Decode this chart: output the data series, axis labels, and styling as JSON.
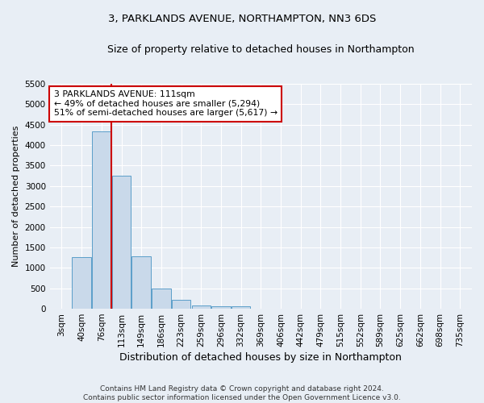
{
  "title": "3, PARKLANDS AVENUE, NORTHAMPTON, NN3 6DS",
  "subtitle": "Size of property relative to detached houses in Northampton",
  "xlabel": "Distribution of detached houses by size in Northampton",
  "ylabel": "Number of detached properties",
  "footer_line1": "Contains HM Land Registry data © Crown copyright and database right 2024.",
  "footer_line2": "Contains public sector information licensed under the Open Government Licence v3.0.",
  "bar_labels": [
    "3sqm",
    "40sqm",
    "76sqm",
    "113sqm",
    "149sqm",
    "186sqm",
    "223sqm",
    "259sqm",
    "296sqm",
    "332sqm",
    "369sqm",
    "406sqm",
    "442sqm",
    "479sqm",
    "515sqm",
    "552sqm",
    "589sqm",
    "625sqm",
    "662sqm",
    "698sqm",
    "735sqm"
  ],
  "bar_values": [
    0,
    1270,
    4330,
    3260,
    1280,
    490,
    215,
    90,
    60,
    55,
    0,
    0,
    0,
    0,
    0,
    0,
    0,
    0,
    0,
    0,
    0
  ],
  "bar_color": "#c9d9ea",
  "bar_edge_color": "#5b9ec9",
  "vline_color": "#cc0000",
  "annotation_text": "3 PARKLANDS AVENUE: 111sqm\n← 49% of detached houses are smaller (5,294)\n51% of semi-detached houses are larger (5,617) →",
  "annotation_box_facecolor": "#ffffff",
  "annotation_box_edgecolor": "#cc0000",
  "ylim_max": 5500,
  "yticks": [
    0,
    500,
    1000,
    1500,
    2000,
    2500,
    3000,
    3500,
    4000,
    4500,
    5000,
    5500
  ],
  "fig_bg_color": "#e8eef5",
  "axes_bg_color": "#e8eef5",
  "grid_color": "#ffffff",
  "title_fontsize": 9.5,
  "subtitle_fontsize": 9,
  "ylabel_fontsize": 8,
  "xlabel_fontsize": 9,
  "tick_fontsize": 7.5,
  "footer_fontsize": 6.5,
  "annotation_fontsize": 7.8
}
